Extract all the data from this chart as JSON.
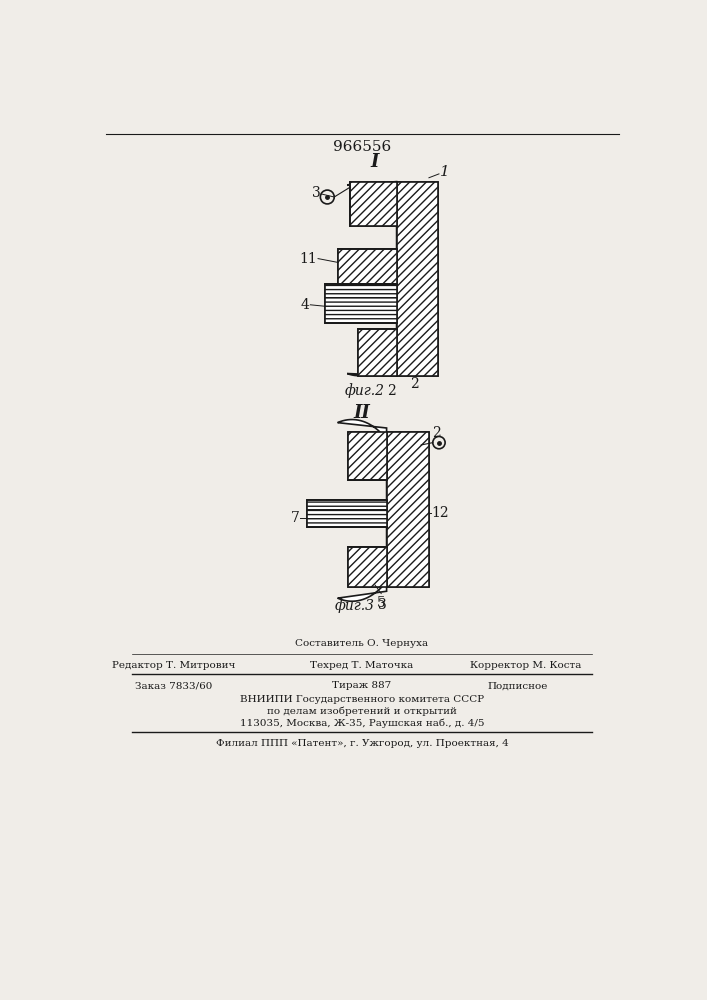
{
  "patent_number": "966556",
  "fig2_label": "I",
  "fig2_caption": "фиг.2",
  "fig3_label": "II",
  "fig3_caption": "фиг.3",
  "footer_line1": "Составитель О. Чернуха",
  "footer_line2_left": "Редактор Т. Митрович",
  "footer_line2_mid": "Техред Т. Маточка",
  "footer_line2_right": "Корректор М. Коста",
  "footer_line3_left": "Заказ 7833/60",
  "footer_line3_mid": "Тираж 887",
  "footer_line3_right": "Подписное",
  "footer_line4": "ВНИИПИ Государственного комитета СССР",
  "footer_line5": "по делам изобретений и открытий",
  "footer_line6": "113035, Москва, Ж-35, Раушская наб., д. 4/5",
  "footer_line7": "Филиал ППП «Патент», г. Ужгород, ул. Проектная, 4",
  "bg_color": "#f0ede8",
  "line_color": "#1a1a1a"
}
